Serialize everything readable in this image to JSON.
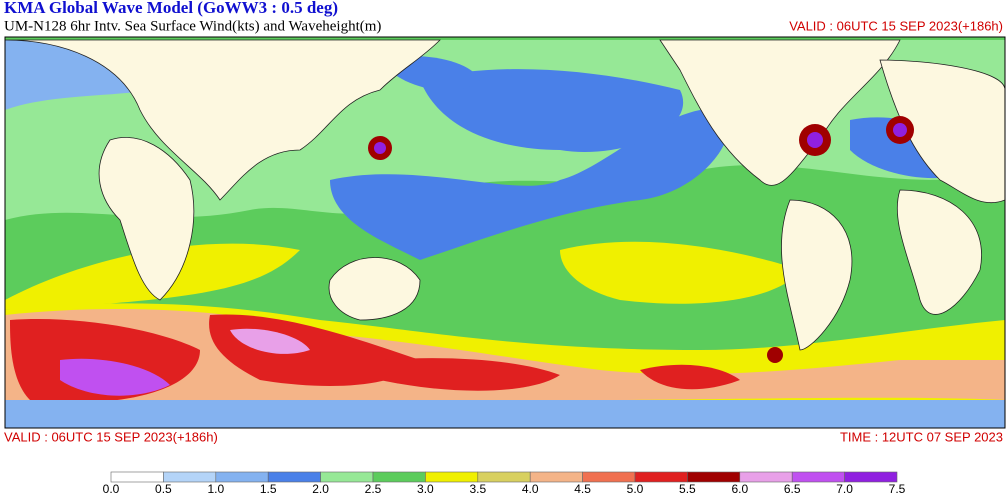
{
  "header": {
    "title": "KMA  Global Wave Model (GoWW3 : 0.5 deg)",
    "subtitle": "UM-N128  6hr Intv. Sea Surface Wind(kts) and Waveheight(m)",
    "valid_top": "VALID : 06UTC 15 SEP 2023(+186h)"
  },
  "footer": {
    "valid": "VALID : 06UTC 15 SEP 2023(+186h)",
    "time": "TIME : 12UTC 07 SEP 2023"
  },
  "legend": {
    "ticks": [
      "0.0",
      "0.5",
      "1.0",
      "1.5",
      "2.0",
      "2.5",
      "3.0",
      "3.5",
      "4.0",
      "4.5",
      "5.0",
      "5.5",
      "6.0",
      "6.5",
      "7.0",
      "7.5"
    ],
    "colors": [
      "#ffffff",
      "#b4d4f8",
      "#84b2f0",
      "#4a80e8",
      "#96e896",
      "#5ccc5c",
      "#f0f000",
      "#d8d060",
      "#f4b488",
      "#f07050",
      "#e02020",
      "#a00000",
      "#e8a0e8",
      "#c050f0",
      "#9020e0"
    ]
  }
}
